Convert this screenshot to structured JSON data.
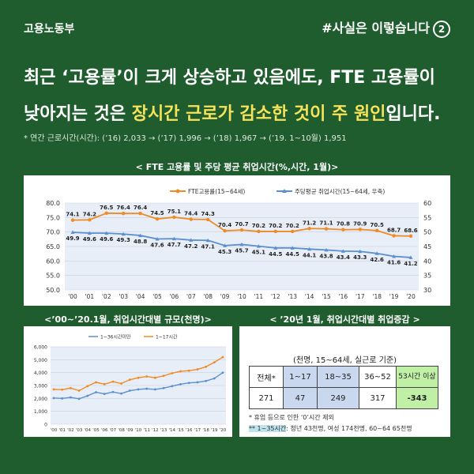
{
  "brand": "고용노동부",
  "tag": {
    "text": "#사실은 이렇습니다",
    "number": "2"
  },
  "headline": {
    "line1": "최근 ‘고용률’이 크게 상승하고 있음에도, FTE 고용률이",
    "line2_pre": "낮아지는 것은 ",
    "line2_hl": "장시간 근로가 감소한 것이 주 원인",
    "line2_post": "입니다."
  },
  "note": "* 연간 근로시간(시간): (’16) 2,033 → (’17) 1,996 → (’18) 1,967 → (’19. 1~10월) 1,951",
  "main_chart_title": "< FTE 고용률 및 주당 평균 취업시간(%,시간, 1월)>",
  "left_chart_title": "<’00~’20.1월, 취업시간대별 규모(천명)>",
  "right_panel": {
    "title": "< ’20년 1월, 취업시간대별 취업증감 >",
    "caption": "(천명, 15~64세, 실근로 기준)",
    "headers": [
      "전체*",
      "1~17",
      "18~35",
      "36~52",
      "53시간 이상"
    ],
    "values": [
      "271",
      "47",
      "249",
      "317",
      "-343"
    ],
    "footnote1": "* 휴업 등으로 인한 ‘0’시간 제외",
    "footnote2_hl": "** 1~35시간",
    "footnote2_rest": ": 청년 43천명, 여성 174천명, 60~64 65천명"
  },
  "colors": {
    "bg": "#1f5c2e",
    "fte": "#f08a24",
    "hours": "#5b8fd0",
    "highlight": "#f6e35a",
    "plot_bg": "#e8eef7"
  },
  "chart_data": [
    {
      "type": "line",
      "title": "FTE 고용률 및 주당 평균 취업시간(%,시간, 1월)",
      "categories": [
        "'00",
        "'01",
        "'02",
        "'03",
        "'04",
        "'05",
        "'06",
        "'07",
        "'08",
        "'09",
        "'10",
        "'11",
        "'12",
        "'13",
        "'14",
        "'15",
        "'16",
        "'17",
        "'18",
        "'19",
        "'20"
      ],
      "series": [
        {
          "name": "FTE고용률(15~64세)",
          "axis": "left",
          "values": [
            74.1,
            74.2,
            76.5,
            76.4,
            76.4,
            74.5,
            75.1,
            74.4,
            74.3,
            70.4,
            70.7,
            70.2,
            70.2,
            70.2,
            71.2,
            71.1,
            70.8,
            70.9,
            70.5,
            68.7,
            68.6
          ]
        },
        {
          "name": "주당평균 취업시간(15~64세, 우축)",
          "axis": "right",
          "values": [
            49.9,
            49.6,
            49.6,
            49.3,
            48.8,
            47.6,
            47.7,
            47.2,
            47.1,
            45.3,
            45.7,
            45.1,
            44.5,
            44.5,
            44.1,
            43.8,
            43.4,
            43.3,
            42.6,
            41.6,
            41.2
          ]
        }
      ],
      "yleft": {
        "min": 50,
        "max": 80,
        "ticks": [
          "50.0",
          "55.0",
          "60.0",
          "65.0",
          "70.0",
          "75.0",
          "80.0"
        ]
      },
      "yright": {
        "min": 30,
        "max": 60,
        "ticks": [
          "30",
          "35",
          "40",
          "45",
          "50",
          "55",
          "60"
        ]
      },
      "legend": "top"
    },
    {
      "type": "line",
      "title": "’00~’20.1월, 취업시간대별 규모(천명)",
      "categories": [
        "'00",
        "'01",
        "'02",
        "'03",
        "'04",
        "'05",
        "'06",
        "'07",
        "'08",
        "'09",
        "'10",
        "'11",
        "'12",
        "'13",
        "'14",
        "'15",
        "'16",
        "'17",
        "'18",
        "'19",
        "'20"
      ],
      "series": [
        {
          "name": "1~36시간미만",
          "values": [
            2030,
            2000,
            2080,
            1970,
            2200,
            2480,
            2350,
            2500,
            2380,
            2600,
            2700,
            2750,
            2700,
            2800,
            2950,
            3100,
            3200,
            3250,
            3350,
            3550,
            4000
          ]
        },
        {
          "name": "1~17시간",
          "values": [
            2700,
            2680,
            2800,
            2600,
            2950,
            3250,
            3100,
            3300,
            3150,
            3450,
            3600,
            3700,
            3600,
            3750,
            3950,
            4100,
            4150,
            4250,
            4450,
            4800,
            5200
          ]
        }
      ],
      "ylim": [
        0,
        6000
      ],
      "yticks": [
        "0",
        "1,000",
        "2,000",
        "3,000",
        "4,000",
        "5,000",
        "6,000"
      ],
      "legend": "top"
    }
  ]
}
